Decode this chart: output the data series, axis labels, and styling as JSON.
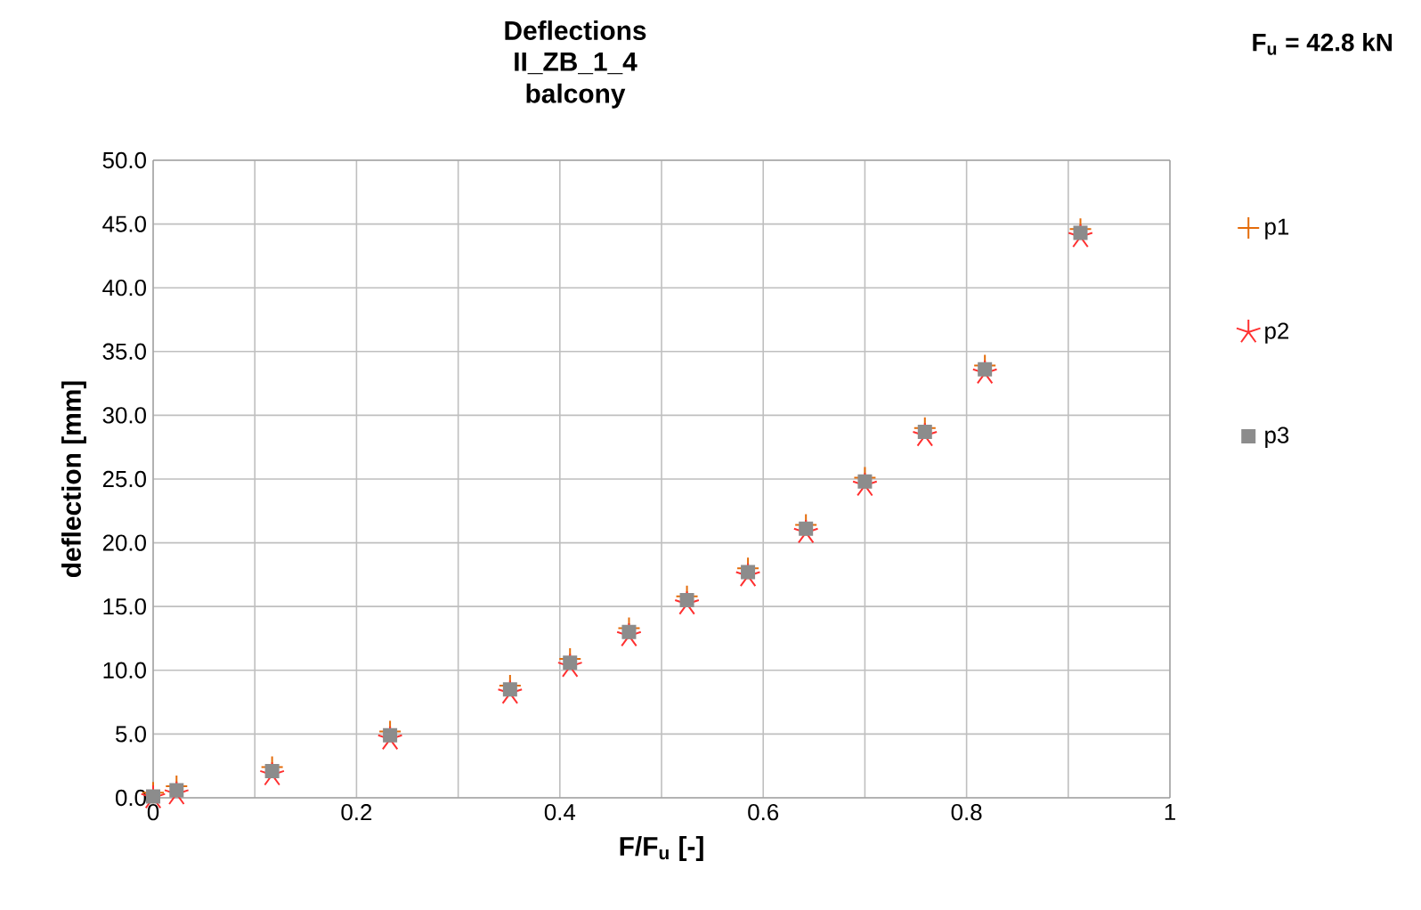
{
  "chart_data": {
    "type": "scatter",
    "title": "Deflections",
    "subtitle": "II_ZB_1_4 balcony",
    "xlabel": "F/F$_{u}$ [-]",
    "ylabel": "deflection [mm]",
    "annotations": [
      "F$_{u}$ = 42.8 kN"
    ],
    "x": [
      0,
      0.023,
      0.117,
      0.233,
      0.351,
      0.41,
      0.468,
      0.525,
      0.585,
      0.642,
      0.7,
      0.759,
      0.818,
      0.912
    ],
    "series": [
      {
        "name": "p1",
        "color": "#e46c0a",
        "marker": "cross",
        "values": [
          0.4,
          0.9,
          2.4,
          5.2,
          8.8,
          10.9,
          13.3,
          15.8,
          18.0,
          21.4,
          25.1,
          29.0,
          33.9,
          44.6
        ]
      },
      {
        "name": "p2",
        "color": "#ff3030",
        "values": [
          0.0,
          0.3,
          1.8,
          4.6,
          8.2,
          10.3,
          12.7,
          15.2,
          17.4,
          20.8,
          24.5,
          28.4,
          33.3,
          44.0
        ]
      },
      {
        "name": "p3",
        "color": "#8c8c8c",
        "marker": "square",
        "values": [
          0.1,
          0.6,
          2.1,
          4.9,
          8.5,
          10.6,
          13.0,
          15.5,
          17.7,
          21.1,
          24.8,
          28.7,
          33.6,
          44.3
        ]
      }
    ],
    "xlim": [
      0,
      1
    ],
    "ylim": [
      0,
      50
    ],
    "xticks": [
      0,
      {
        "value": 0.1,
        "label": null
      },
      0.2,
      {
        "value": 0.3,
        "label": null
      },
      0.4,
      {
        "value": 0.5,
        "label": null
      },
      0.6,
      {
        "value": 0.7,
        "label": null
      },
      0.8,
      {
        "value": 0.9,
        "label": null
      },
      1
    ],
    "yticks": [
      {
        "value": 0,
        "label": "0.0"
      },
      {
        "value": 5,
        "label": "5.0"
      },
      {
        "value": 10,
        "label": "10.0"
      },
      {
        "value": 15,
        "label": "15.0"
      },
      {
        "value": 20,
        "label": "20.0"
      },
      {
        "value": 25,
        "label": "25.0"
      },
      {
        "value": 30,
        "label": "30.0"
      },
      {
        "value": 35,
        "label": "35.0"
      },
      {
        "value": 40,
        "label": "40.0"
      },
      {
        "value": 45,
        "label": "45.0"
      },
      {
        "value": 50,
        "label": "50.0"
      }
    ],
    "grid": true,
    "legend": "right"
  }
}
